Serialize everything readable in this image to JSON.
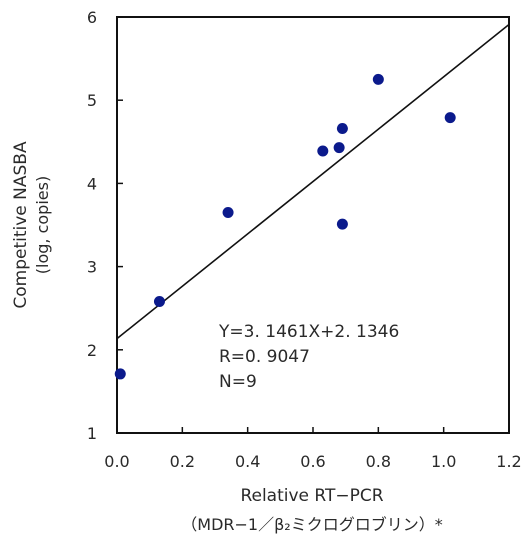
{
  "chart_data": {
    "type": "scatter",
    "title": "",
    "xlabel": "Relative RT−PCR",
    "xlabel_sub": "（MDR−1／β₂ミクログロブリン）*",
    "ylabel": "Competitive NASBA",
    "ylabel_sub": "(log, copies)",
    "xlim": [
      0.0,
      1.2
    ],
    "ylim": [
      1,
      6
    ],
    "x_ticks": [
      0.0,
      0.2,
      0.4,
      0.6,
      0.8,
      1.0,
      1.2
    ],
    "x_tick_labels": [
      "0.0",
      "0.2",
      "0.4",
      "0.6",
      "0.8",
      "1.0",
      "1.2"
    ],
    "y_ticks": [
      1,
      2,
      3,
      4,
      5,
      6
    ],
    "y_tick_labels": [
      "1",
      "2",
      "3",
      "4",
      "5",
      "6"
    ],
    "grid": false,
    "point_color": "#0b1a8c",
    "series": [
      {
        "points": [
          {
            "x": 0.01,
            "y": 1.71
          },
          {
            "x": 0.13,
            "y": 2.58
          },
          {
            "x": 0.34,
            "y": 3.65
          },
          {
            "x": 0.63,
            "y": 4.39
          },
          {
            "x": 0.68,
            "y": 4.43
          },
          {
            "x": 0.69,
            "y": 4.66
          },
          {
            "x": 0.69,
            "y": 3.51
          },
          {
            "x": 0.8,
            "y": 5.25
          },
          {
            "x": 1.02,
            "y": 4.79
          }
        ]
      }
    ],
    "regression": {
      "slope": 3.1461,
      "intercept": 2.1346
    },
    "annotations": [
      "Y=3. 1461X+2. 1346",
      "R=0. 9047",
      "N=9"
    ]
  }
}
